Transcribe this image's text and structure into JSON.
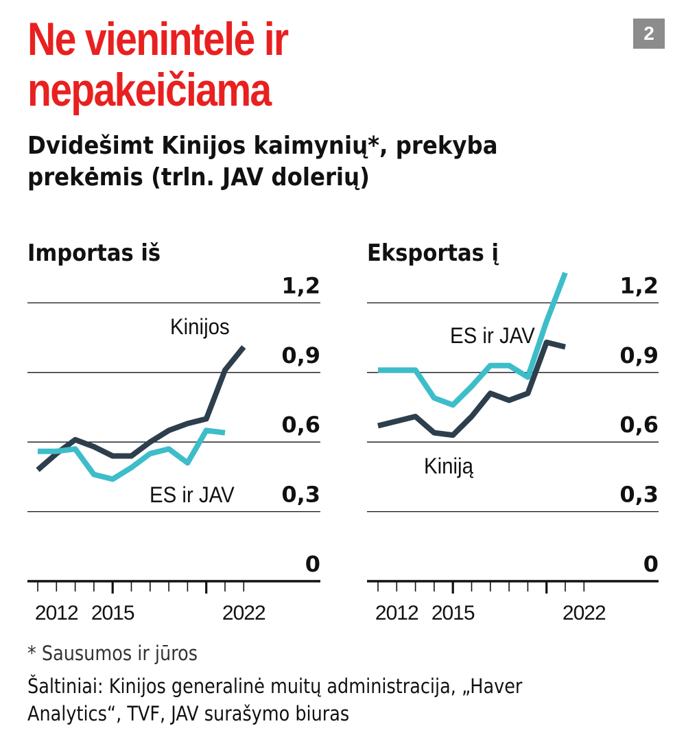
{
  "header": {
    "title_line1": "Ne vienintelė ir",
    "title_line2": "nepakeičiama",
    "badge": "2",
    "subtitle_line1": "Dvidešimt Kinijos kaimynių*, prekyba",
    "subtitle_line2": "prekėmis (trln. JAV dolerių)"
  },
  "footer": {
    "footnote": "* Sausumos ir jūros",
    "sources_line1": "Šaltiniai: Kinijos generalinė muitų administracija, „Haver",
    "sources_line2": "Analytics“, TVF, JAV surašymo biuras"
  },
  "colors": {
    "title": "#e8201f",
    "china_series": "#2d3e4c",
    "eu_us_series": "#3dbdc9",
    "grid": "#111111"
  },
  "chart_data": [
    {
      "type": "line",
      "title": "Importas iš",
      "x": [
        2011,
        2012,
        2013,
        2014,
        2015,
        2016,
        2017,
        2018,
        2019,
        2020,
        2021,
        2022
      ],
      "ylim": [
        0,
        1.2
      ],
      "yticks": [
        0,
        0.3,
        0.6,
        0.9,
        1.2
      ],
      "ytick_labels": [
        "0",
        "0,3",
        "0,6",
        "0,9",
        "1,2"
      ],
      "xtick_labels": [
        "2012",
        "2015",
        "2022"
      ],
      "xtick_label_years": [
        2012,
        2015,
        2022
      ],
      "grid": true,
      "series": [
        {
          "name": "Kinijos",
          "label_position": "above-right",
          "values": [
            0.48,
            0.55,
            0.61,
            0.58,
            0.54,
            0.54,
            0.6,
            0.65,
            0.68,
            0.7,
            0.91,
            1.01
          ]
        },
        {
          "name": "ES ir JAV",
          "label_position": "below-right",
          "values": [
            0.56,
            0.56,
            0.57,
            0.46,
            0.44,
            0.49,
            0.55,
            0.57,
            0.51,
            0.65,
            0.64,
            null
          ]
        }
      ]
    },
    {
      "type": "line",
      "title": "Eksportas į",
      "x": [
        2011,
        2012,
        2013,
        2014,
        2015,
        2016,
        2017,
        2018,
        2019,
        2020,
        2021,
        2022
      ],
      "ylim": [
        0,
        1.2
      ],
      "yticks": [
        0,
        0.3,
        0.6,
        0.9,
        1.2
      ],
      "ytick_labels": [
        "0",
        "0,3",
        "0,6",
        "0,9",
        "1,2"
      ],
      "xtick_labels": [
        "2012",
        "2015",
        "2022"
      ],
      "xtick_label_years": [
        2012,
        2015,
        2022
      ],
      "grid": true,
      "series": [
        {
          "name": "ES ir JAV",
          "label_position": "above-left",
          "values": [
            0.91,
            0.91,
            0.91,
            0.79,
            0.76,
            0.84,
            0.93,
            0.93,
            0.88,
            1.12,
            1.33,
            null
          ]
        },
        {
          "name": "Kinija",
          "label_display": "Kiniją",
          "label_position": "below",
          "values": [
            0.67,
            0.69,
            0.71,
            0.64,
            0.63,
            0.71,
            0.81,
            0.78,
            0.81,
            1.03,
            1.01,
            null
          ]
        }
      ]
    }
  ]
}
